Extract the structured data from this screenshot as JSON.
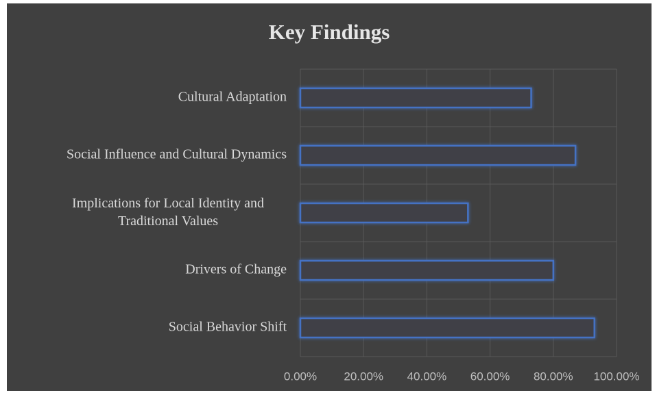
{
  "chart_data": {
    "type": "bar",
    "orientation": "horizontal",
    "title": "Key Findings",
    "categories": [
      "Cultural Adaptation",
      "Social Influence and Cultural Dynamics",
      "Implications for Local Identity and Traditional Values",
      "Drivers of Change",
      "Social Behavior Shift"
    ],
    "values": [
      73,
      87,
      53,
      80,
      93
    ],
    "color": "#4472c4",
    "xlim": [
      0,
      100
    ],
    "xticks": [
      {
        "value": 0,
        "label": "0.00%"
      },
      {
        "value": 20,
        "label": "20.00%"
      },
      {
        "value": 40,
        "label": "40.00%"
      },
      {
        "value": 60,
        "label": "60.00%"
      },
      {
        "value": 80,
        "label": "80.00%"
      },
      {
        "value": 100,
        "label": "100.00%"
      }
    ],
    "grid": true
  }
}
